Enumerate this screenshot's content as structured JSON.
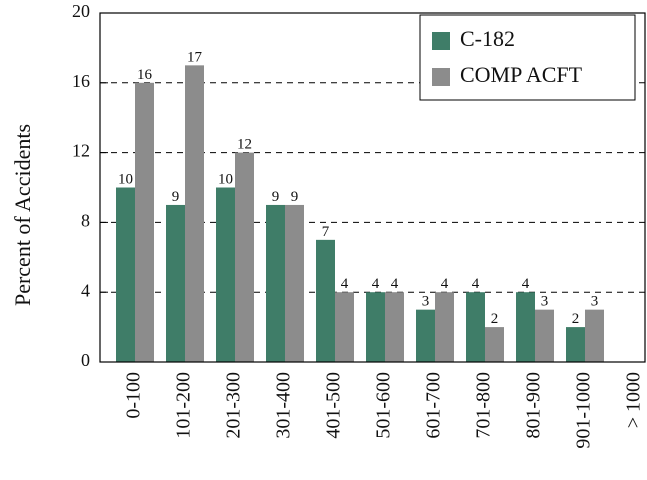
{
  "chart_data": {
    "type": "bar",
    "y_label": "Percent of Accidents",
    "categories": [
      "0-100",
      "101-200",
      "201-300",
      "301-400",
      "401-500",
      "501-600",
      "601-700",
      "701-800",
      "801-900",
      "901-1000",
      "> 1000"
    ],
    "series": [
      {
        "name": "C-182",
        "color": "#3f7d68",
        "values": [
          10,
          9,
          10,
          9,
          7,
          4,
          3,
          4,
          4,
          2,
          null
        ]
      },
      {
        "name": "COMP ACFT",
        "color": "#8c8c8c",
        "values": [
          16,
          17,
          12,
          9,
          4,
          4,
          4,
          2,
          3,
          3,
          null
        ]
      }
    ],
    "ylim": [
      0,
      20
    ],
    "yticks": [
      0,
      4,
      8,
      12,
      16,
      20
    ],
    "grid": true,
    "legend": "top-right"
  }
}
